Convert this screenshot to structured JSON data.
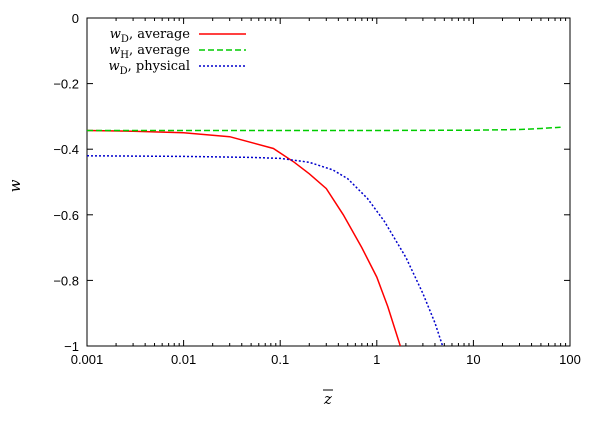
{
  "chart_data": {
    "type": "line",
    "title": "",
    "xlabel": "z",
    "ylabel": "w",
    "xscale": "log",
    "xlim": [
      0.001,
      100
    ],
    "ylim": [
      -1,
      0
    ],
    "x_ticks": [
      0.001,
      0.01,
      0.1,
      1,
      10,
      100
    ],
    "x_tick_labels": [
      "0.001",
      "0.01",
      "0.1",
      "1",
      "10",
      "100"
    ],
    "y_ticks": [
      0,
      -0.2,
      -0.4,
      -0.6,
      -0.8,
      -1
    ],
    "y_tick_labels": [
      "0",
      "−0.2",
      "−0.4",
      "−0.6",
      "−0.8",
      "−1"
    ],
    "grid": false,
    "legend_position": "top-left",
    "series": [
      {
        "name": "wD, average",
        "legend_var": "w",
        "legend_sub": "D",
        "legend_rest": ", average",
        "color": "#ff0000",
        "dash": "solid",
        "x": [
          0.001,
          0.003,
          0.01,
          0.03,
          0.085,
          0.14,
          0.2,
          0.3,
          0.45,
          0.7,
          1.0,
          1.3,
          1.75
        ],
        "y": [
          -0.343,
          -0.345,
          -0.35,
          -0.362,
          -0.398,
          -0.44,
          -0.475,
          -0.52,
          -0.6,
          -0.7,
          -0.79,
          -0.88,
          -1.0
        ]
      },
      {
        "name": "wH, average",
        "legend_var": "w",
        "legend_sub": "H",
        "legend_rest": ", average",
        "color": "#00cc00",
        "dash": "dashed",
        "x": [
          0.001,
          0.01,
          0.1,
          1,
          10,
          30,
          50,
          80
        ],
        "y": [
          -0.343,
          -0.343,
          -0.343,
          -0.343,
          -0.342,
          -0.34,
          -0.337,
          -0.333
        ]
      },
      {
        "name": "wD, physical",
        "legend_var": "w",
        "legend_sub": "D",
        "legend_rest": ", physical",
        "color": "#0000cc",
        "dash": "dotted",
        "x": [
          0.001,
          0.01,
          0.05,
          0.1,
          0.2,
          0.35,
          0.5,
          0.8,
          1.2,
          2.0,
          3.0,
          4.0,
          4.8
        ],
        "y": [
          -0.42,
          -0.422,
          -0.425,
          -0.428,
          -0.44,
          -0.463,
          -0.49,
          -0.55,
          -0.62,
          -0.73,
          -0.84,
          -0.93,
          -1.0
        ]
      }
    ]
  }
}
